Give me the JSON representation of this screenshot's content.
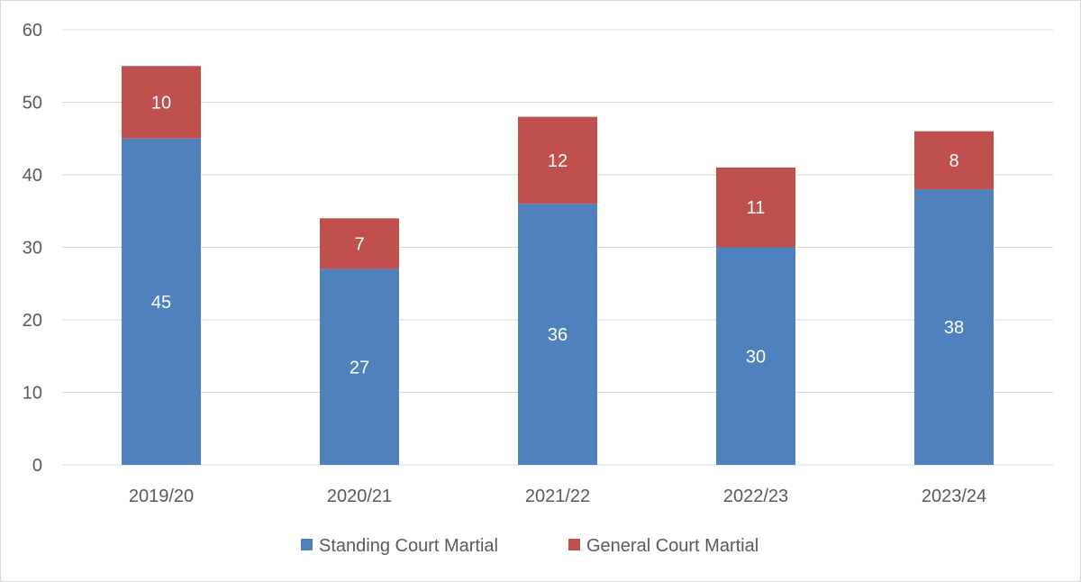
{
  "chart_data": {
    "type": "bar",
    "stacked": true,
    "categories": [
      "2019/20",
      "2020/21",
      "2021/22",
      "2022/23",
      "2023/24"
    ],
    "series": [
      {
        "name": "Standing Court Martial",
        "values": [
          45,
          27,
          36,
          30,
          38
        ],
        "color": "#4f81bd"
      },
      {
        "name": "General Court Martial",
        "values": [
          10,
          7,
          12,
          11,
          8
        ],
        "color": "#c0504d"
      }
    ],
    "title": "",
    "xlabel": "",
    "ylabel": "",
    "ylim": [
      0,
      60
    ],
    "yticks": [
      "0",
      "10",
      "20",
      "30",
      "40",
      "50",
      "60"
    ],
    "grid": true,
    "gridColor": "#d9d9d9",
    "legend": "bottom"
  }
}
